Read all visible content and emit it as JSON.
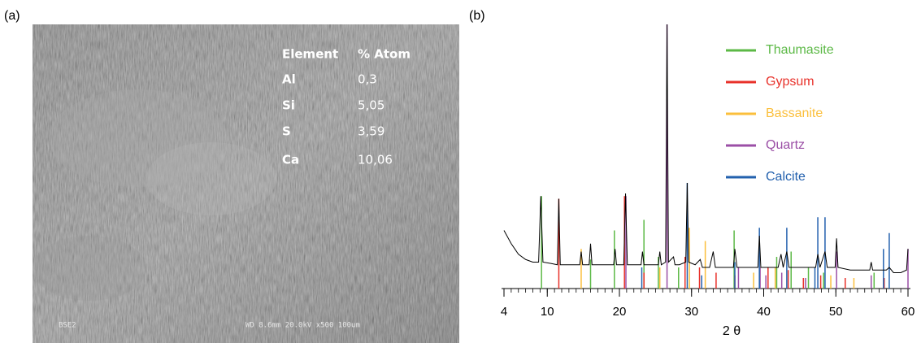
{
  "panel_a": {
    "label": "(a)",
    "table": {
      "header": [
        "Element",
        "% Atom"
      ],
      "rows": [
        [
          "Al",
          "0,3"
        ],
        [
          "Si",
          "5,05"
        ],
        [
          "S",
          "3,59"
        ],
        [
          "Ca",
          "10,06"
        ]
      ]
    },
    "footer_left": "BSE2",
    "footer_right": "WD 8.6mm 20.0kV x500 100um"
  },
  "chart_data": {
    "type": "xrd",
    "panel_label": "(b)",
    "x_label": "2 θ",
    "xlim": [
      4,
      60
    ],
    "ylim": [
      0,
      100
    ],
    "xticks": [
      4,
      10,
      20,
      30,
      40,
      50,
      60
    ],
    "xminorticks": [
      4,
      5,
      6,
      7,
      8,
      9,
      10,
      11,
      12,
      13,
      14,
      15,
      16,
      17,
      18,
      19,
      20,
      21,
      22,
      23,
      24,
      25,
      26,
      27,
      28,
      29,
      30,
      31,
      32,
      33,
      34,
      35,
      36,
      37,
      38,
      39,
      40,
      41,
      42,
      43,
      44,
      45,
      46,
      47,
      48,
      49,
      50,
      51,
      52,
      53,
      54,
      55,
      56,
      57,
      58,
      59,
      60
    ],
    "series": [
      {
        "color": "#000000",
        "style": "line",
        "x": [
          4,
          5,
          6,
          7,
          8,
          8.8,
          9.1,
          9.4,
          10.5,
          11.4,
          11.6,
          11.8,
          13,
          14.5,
          14.7,
          14.9,
          15.8,
          16,
          16.2,
          18,
          19.2,
          19.4,
          19.6,
          20.6,
          20.85,
          21.1,
          22,
          23,
          23.2,
          23.4,
          24.5,
          25.4,
          25.6,
          25.8,
          26.4,
          26.6,
          26.8,
          27.5,
          27.7,
          28.3,
          29.2,
          29.4,
          29.6,
          30.5,
          31.2,
          31.5,
          32.5,
          33,
          33.3,
          34.5,
          35.8,
          36,
          36.3,
          37,
          39.2,
          39.4,
          39.6,
          40.5,
          42,
          42.4,
          42.7,
          43.2,
          43.5,
          45,
          47.2,
          47.5,
          47.8,
          48.5,
          48.8,
          49.9,
          50.1,
          50.3,
          52,
          54.7,
          54.9,
          55.1,
          57,
          57.4,
          58,
          59,
          59.8,
          60
        ],
        "values": [
          22,
          17,
          13,
          11,
          10,
          10,
          35,
          10,
          9.5,
          9,
          34,
          9,
          9,
          9,
          14,
          9,
          9,
          17,
          9,
          9,
          9,
          15,
          9,
          9,
          36,
          9,
          9,
          9,
          14,
          9,
          9,
          9,
          14,
          9,
          10,
          100,
          10,
          12,
          9,
          9,
          10,
          40,
          10,
          9,
          11,
          8,
          8,
          14,
          8,
          8,
          8,
          15,
          8,
          8,
          8,
          20,
          8,
          8,
          8,
          13,
          8,
          14,
          8,
          8,
          8,
          13,
          8,
          14,
          8,
          8,
          19,
          8,
          7,
          7,
          10,
          7,
          7,
          8,
          6,
          6,
          7,
          15
        ]
      },
      {
        "name": "Thaumasite",
        "color": "#5cb946",
        "style": "stick",
        "x": [
          9.2,
          16.0,
          19.3,
          23.4,
          25.4,
          28.2,
          35.9,
          41.8,
          43.8,
          46.2,
          48.3,
          55.3
        ],
        "values": [
          35,
          11,
          22,
          26,
          12,
          8,
          22,
          12,
          14,
          8,
          6,
          6
        ]
      },
      {
        "name": "Gypsum",
        "color": "#e8312a",
        "style": "stick",
        "x": [
          11.6,
          20.7,
          23.4,
          29.1,
          31.1,
          33.4,
          36.0,
          40.6,
          43.4,
          45.5,
          47.9,
          51.3,
          56.7
        ],
        "values": [
          34,
          35,
          6,
          12,
          8,
          6,
          5,
          8,
          7,
          4,
          5,
          4,
          4
        ]
      },
      {
        "name": "Bassanite",
        "color": "#fbbf3c",
        "style": "stick",
        "x": [
          14.7,
          25.6,
          29.7,
          31.9,
          38.6,
          41.6,
          49.3,
          52.5
        ],
        "values": [
          15,
          8,
          23,
          18,
          6,
          8,
          5,
          4
        ]
      },
      {
        "name": "Quartz",
        "color": "#9b4fa6",
        "style": "stick",
        "x": [
          20.9,
          26.6,
          36.5,
          39.5,
          40.3,
          42.5,
          45.8,
          50.1,
          54.9,
          60.0
        ],
        "values": [
          35,
          100,
          8,
          8,
          5,
          6,
          4,
          14,
          5,
          15
        ]
      },
      {
        "name": "Calcite",
        "color": "#2361ae",
        "style": "stick",
        "x": [
          23.1,
          29.4,
          31.4,
          36.0,
          39.4,
          43.2,
          47.1,
          47.5,
          48.5,
          56.6,
          57.4
        ],
        "values": [
          8,
          40,
          5,
          10,
          23,
          23,
          8,
          27,
          27,
          15,
          21
        ]
      }
    ]
  }
}
